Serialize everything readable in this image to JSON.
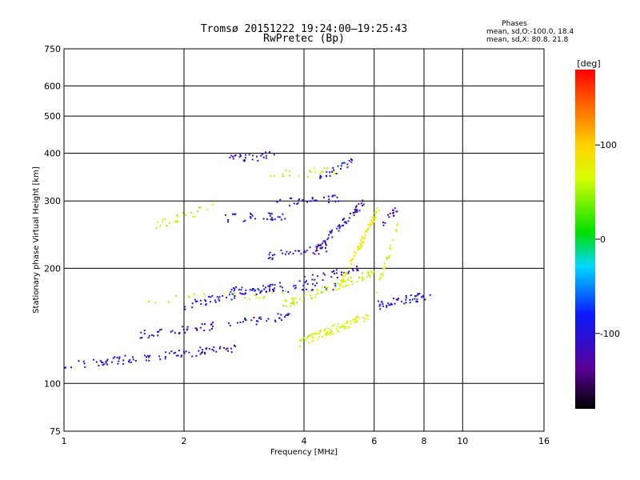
{
  "chart_data": {
    "type": "scatter",
    "title": "Tromsø 20151222 19:24:00–19:25:43",
    "subtitle": "RwPretec (Bp)",
    "xlabel": "Frequency [MHz]",
    "ylabel": "Stationary phase Virtual Height [km]",
    "x_scale": "log",
    "y_scale": "log",
    "xlim": [
      1,
      16
    ],
    "ylim": [
      75,
      750
    ],
    "x_ticks": [
      "1",
      "2",
      "4",
      "6",
      "8",
      "10",
      "16"
    ],
    "x_tick_values": [
      1,
      2,
      4,
      6,
      8,
      10,
      16
    ],
    "y_ticks": [
      "75",
      "100",
      "200",
      "300",
      "400",
      "500",
      "600",
      "750"
    ],
    "y_tick_values": [
      75,
      100,
      200,
      300,
      400,
      500,
      600,
      750
    ],
    "grid": true,
    "stats_header": "Phases",
    "stats_lines": [
      "mean, sd,O:-100.0, 18.4",
      "mean, sd,X:  80.8, 21.8"
    ],
    "colorbar": {
      "label": "[deg]",
      "min": -180,
      "max": 180,
      "ticks": [
        "100",
        "0",
        "-100"
      ],
      "tick_values": [
        100,
        0,
        -100
      ]
    },
    "series": [
      {
        "traces": [
          {
            "f0": 1.0,
            "f1": 2.7,
            "h0": 111,
            "h1": 124,
            "ph": -110,
            "n": 95
          },
          {
            "f0": 1.55,
            "f1": 3.7,
            "h0": 134,
            "h1": 150,
            "ph": -105,
            "n": 70
          },
          {
            "f0": 1.6,
            "f1": 3.6,
            "h0": 165,
            "h1": 172,
            "ph": 60,
            "n": 25
          },
          {
            "f0": 2.0,
            "f1": 3.5,
            "h0": 160,
            "h1": 180,
            "ph": -95,
            "n": 55
          },
          {
            "f0": 2.6,
            "f1": 5.0,
            "h0": 175,
            "h1": 180,
            "ph": -90,
            "n": 45
          },
          {
            "f0": 3.2,
            "f1": 4.6,
            "h0": 215,
            "h1": 225,
            "ph": -110,
            "n": 35
          },
          {
            "f0": 3.9,
            "f1": 5.6,
            "h0": 185,
            "h1": 200,
            "ph": -105,
            "n": 30
          },
          {
            "f0": 4.3,
            "f1": 5.7,
            "h0": 225,
            "h1": 300,
            "ph": -110,
            "n": 60
          },
          {
            "f0": 3.9,
            "f1": 5.8,
            "h0": 128,
            "h1": 150,
            "ph": 70,
            "n": 90
          },
          {
            "f0": 3.5,
            "f1": 6.0,
            "h0": 160,
            "h1": 195,
            "ph": 65,
            "n": 80
          },
          {
            "f0": 4.9,
            "f1": 6.2,
            "h0": 180,
            "h1": 290,
            "ph": 80,
            "n": 80
          },
          {
            "f0": 6.1,
            "f1": 8.3,
            "h0": 160,
            "h1": 170,
            "ph": -100,
            "n": 45
          },
          {
            "f0": 1.7,
            "f1": 2.4,
            "h0": 260,
            "h1": 290,
            "ph": 60,
            "n": 25
          },
          {
            "f0": 2.5,
            "f1": 3.6,
            "h0": 270,
            "h1": 275,
            "ph": -95,
            "n": 30
          },
          {
            "f0": 2.6,
            "f1": 3.4,
            "h0": 385,
            "h1": 395,
            "ph": -110,
            "n": 28
          },
          {
            "f0": 3.2,
            "f1": 4.8,
            "h0": 350,
            "h1": 360,
            "ph": 60,
            "n": 25
          },
          {
            "f0": 3.3,
            "f1": 5.0,
            "h0": 295,
            "h1": 305,
            "ph": -100,
            "n": 30
          },
          {
            "f0": 4.3,
            "f1": 5.3,
            "h0": 340,
            "h1": 380,
            "ph": -90,
            "n": 25
          },
          {
            "f0": 6.3,
            "f1": 6.9,
            "h0": 260,
            "h1": 290,
            "ph": -120,
            "n": 15
          },
          {
            "f0": 6.1,
            "f1": 6.9,
            "h0": 175,
            "h1": 260,
            "ph": 70,
            "n": 25
          }
        ]
      }
    ]
  }
}
